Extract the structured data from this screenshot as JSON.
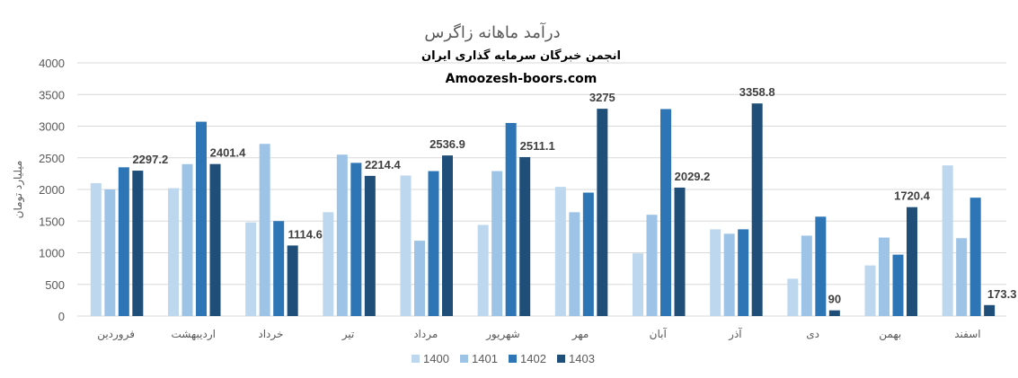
{
  "chart_data": {
    "type": "bar",
    "title": "درآمد ماهانه زاگرس",
    "subtitle": "انجمن خبرگان سرمایه گذاری ایران",
    "source": "Amoozesh-boors.com",
    "ylabel": "میلیارد تومان",
    "xlabel": "",
    "ylim": [
      0,
      4000
    ],
    "yticks": [
      0,
      500,
      1000,
      1500,
      2000,
      2500,
      3000,
      3500,
      4000
    ],
    "grid": true,
    "legend_position": "bottom",
    "categories": [
      "فروردین",
      "اردیبهشت",
      "خرداد",
      "تیر",
      "مرداد",
      "شهریور",
      "مهر",
      "آبان",
      "آذر",
      "دی",
      "بهمن",
      "اسفند"
    ],
    "series": [
      {
        "name": "1400",
        "color": "#bdd7ee",
        "values": [
          2100,
          2020,
          1480,
          1640,
          2220,
          1440,
          2040,
          990,
          1370,
          590,
          800,
          2380
        ]
      },
      {
        "name": "1401",
        "color": "#9dc3e6",
        "values": [
          2000,
          2400,
          2720,
          2550,
          1190,
          2290,
          1640,
          1600,
          1300,
          1270,
          1240,
          1230
        ]
      },
      {
        "name": "1402",
        "color": "#2e75b6",
        "values": [
          2350,
          3070,
          1500,
          2420,
          2290,
          3050,
          1950,
          3270,
          1370,
          1570,
          970,
          1870
        ]
      },
      {
        "name": "1403",
        "color": "#1f4e79",
        "values": [
          2297.2,
          2401.4,
          1114.6,
          2214.4,
          2536.9,
          2511.1,
          3275,
          2029.2,
          3358.8,
          90,
          1720.4,
          173.3
        ]
      }
    ],
    "data_labels": {
      "series": "1403",
      "labels": [
        "2297.2",
        "2401.4",
        "1114.6",
        "2214.4",
        "2536.9",
        "2511.1",
        "3275",
        "2029.2",
        "3358.8",
        "90",
        "1720.4",
        "173.3"
      ]
    }
  }
}
